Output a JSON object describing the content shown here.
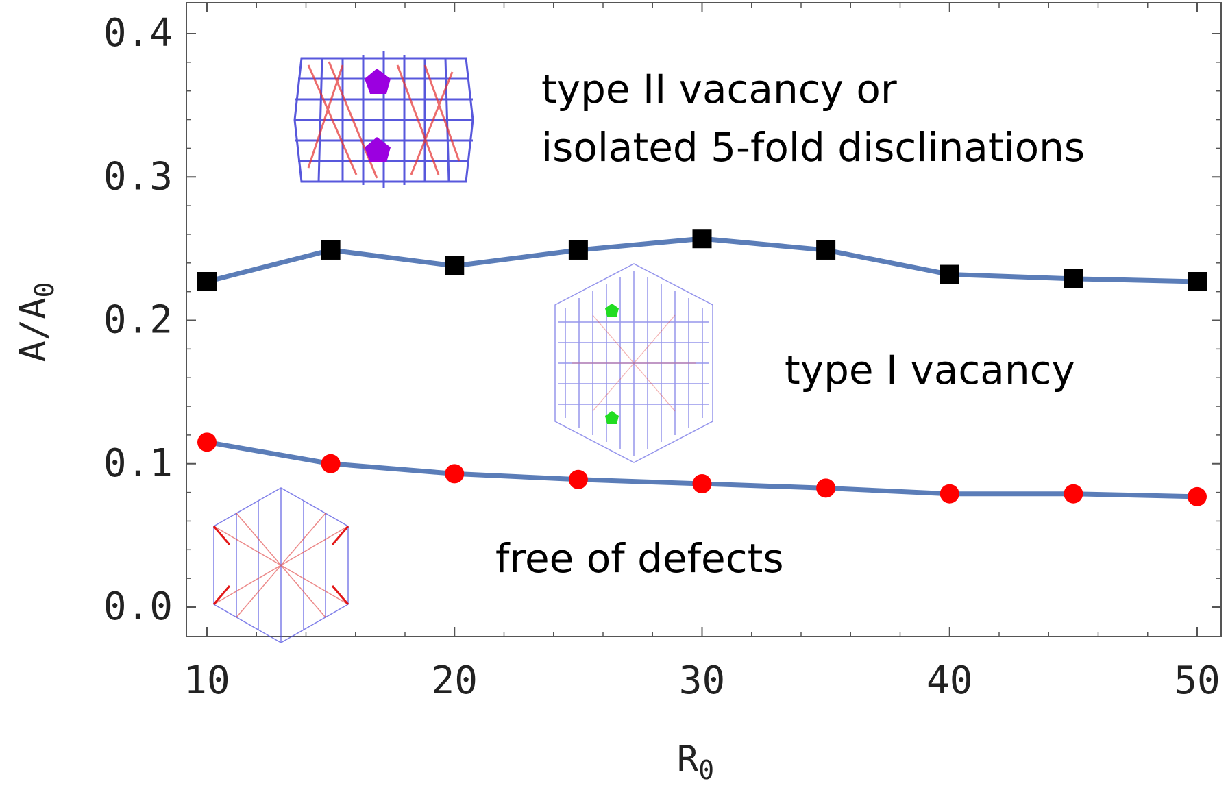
{
  "chart_data": {
    "type": "line",
    "title": "",
    "xlabel": "R",
    "xlabel_sub": "0",
    "ylabel": "A/A",
    "ylabel_sub": "0",
    "xlim": [
      10,
      50
    ],
    "ylim": [
      0.0,
      0.4
    ],
    "xticks": [
      "10",
      "20",
      "30",
      "40",
      "50"
    ],
    "yticks": [
      "0.0",
      "0.1",
      "0.2",
      "0.3",
      "0.4"
    ],
    "x": [
      10,
      15,
      20,
      25,
      30,
      35,
      40,
      45,
      50
    ],
    "series": [
      {
        "name": "type I vacancy",
        "marker": "square",
        "marker_color": "#000000",
        "line_color": "#5b7db8",
        "values": [
          0.227,
          0.249,
          0.238,
          0.249,
          0.257,
          0.249,
          0.232,
          0.229,
          0.227
        ]
      },
      {
        "name": "free of defects",
        "marker": "circle",
        "marker_color": "#ff0000",
        "line_color": "#5b7db8",
        "values": [
          0.115,
          0.1,
          0.093,
          0.089,
          0.086,
          0.083,
          0.079,
          0.079,
          0.077
        ]
      }
    ],
    "annotations": {
      "type2_line1": "type II vacancy or",
      "type2_line2": "isolated 5-fold disclinations",
      "type1": "type I vacancy",
      "free": "free of defects"
    },
    "grid": false
  }
}
